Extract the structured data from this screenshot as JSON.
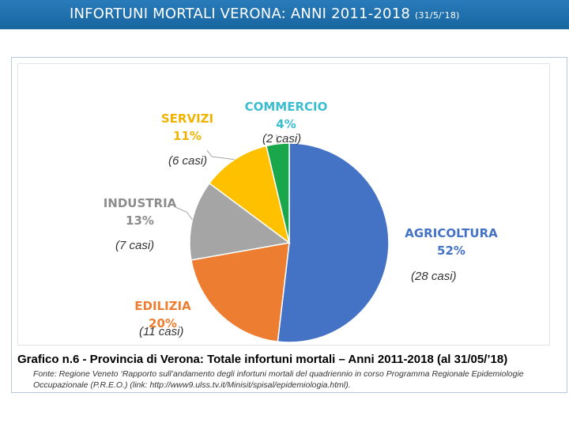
{
  "header": {
    "title": "INFORTUNI MORTALI VERONA: ANNI 2011-2018",
    "date": "(31/5/’18)"
  },
  "chart_data": {
    "type": "pie",
    "slices": [
      {
        "label": "AGRICOLTURA",
        "percent": "52%",
        "cases": "(28 casi)",
        "value": 28,
        "color": "#4472c4",
        "label_color": "#4472c4"
      },
      {
        "label": "EDILIZIA",
        "percent": "20%",
        "cases": "(11 casi)",
        "value": 11,
        "color": "#ed7d31",
        "label_color": "#ed7d31"
      },
      {
        "label": "INDUSTRIA",
        "percent": "13%",
        "cases": "(7 casi)",
        "value": 7,
        "color": "#a5a5a5",
        "label_color": "#8c8c8c"
      },
      {
        "label": "SERVIZI",
        "percent": "11%",
        "cases": "(6 casi)",
        "value": 6,
        "color": "#ffc000",
        "label_color": "#f0b400"
      },
      {
        "label": "COMMERCIO",
        "percent": "4%",
        "cases": "(2 casi)",
        "value": 2,
        "color": "#1aa64a",
        "label_color": "#3bbdd0"
      }
    ]
  },
  "caption": "Grafico n.6 - Provincia di Verona: Totale infortuni mortali – Anni 2011-2018 (al 31/05/’18)",
  "source": {
    "line1": "Fonte: Regione Veneto ‘Rapporto sull’andamento degli infortuni mortali del quadriennio in corso Programma Regionale Epidemiologie",
    "line2": "Occupazionale (P.R.E.O.) (link: http://www9.ulss.tv.it/Minisit/spisal/epidemiologia.html)."
  }
}
